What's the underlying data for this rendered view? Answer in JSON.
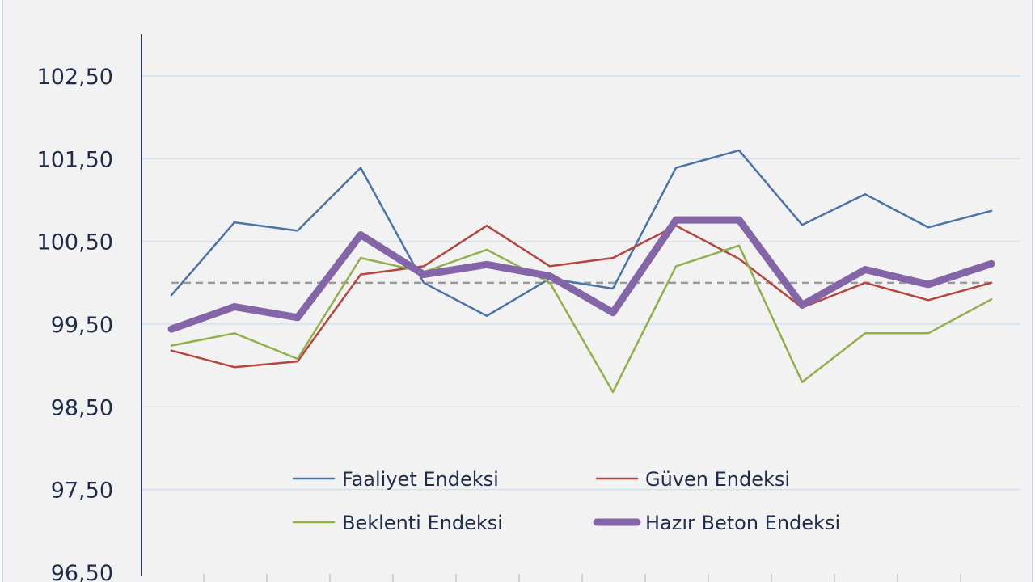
{
  "chart_data": {
    "type": "line",
    "title": "",
    "xlabel": "",
    "ylabel": "",
    "ylim": [
      96.5,
      103.5
    ],
    "yticks": [
      "96,50",
      "97,50",
      "98,50",
      "99,50",
      "100,50",
      "101,50",
      "102,50"
    ],
    "ytick_values": [
      96.5,
      97.5,
      98.5,
      99.5,
      100.5,
      101.5,
      102.5
    ],
    "reference_line": 100.0,
    "grid": true,
    "legend_position": "bottom-center",
    "series": [
      {
        "name": "Faaliyet Endeksi",
        "color": "#4a74a8",
        "values": [
          99.85,
          100.73,
          100.63,
          101.39,
          100.0,
          99.6,
          100.05,
          99.93,
          101.39,
          101.6,
          100.7,
          101.07,
          100.67,
          100.87
        ]
      },
      {
        "name": "Güven Endeksi",
        "color": "#b5453f",
        "values": [
          99.18,
          98.98,
          99.05,
          100.1,
          100.2,
          100.69,
          100.2,
          100.3,
          100.69,
          100.29,
          99.7,
          100.0,
          99.79,
          100.0
        ]
      },
      {
        "name": "Beklenti Endeksi",
        "color": "#91b04a",
        "values": [
          99.24,
          99.39,
          99.08,
          100.3,
          100.13,
          100.4,
          100.0,
          98.68,
          100.2,
          100.45,
          98.8,
          99.39,
          99.39,
          99.8
        ]
      },
      {
        "name": "Hazır Beton Endeksi",
        "color": "#8466a8",
        "values": [
          99.44,
          99.71,
          99.58,
          100.58,
          100.1,
          100.22,
          100.08,
          99.64,
          100.76,
          100.76,
          99.73,
          100.16,
          99.98,
          100.23
        ]
      }
    ]
  }
}
